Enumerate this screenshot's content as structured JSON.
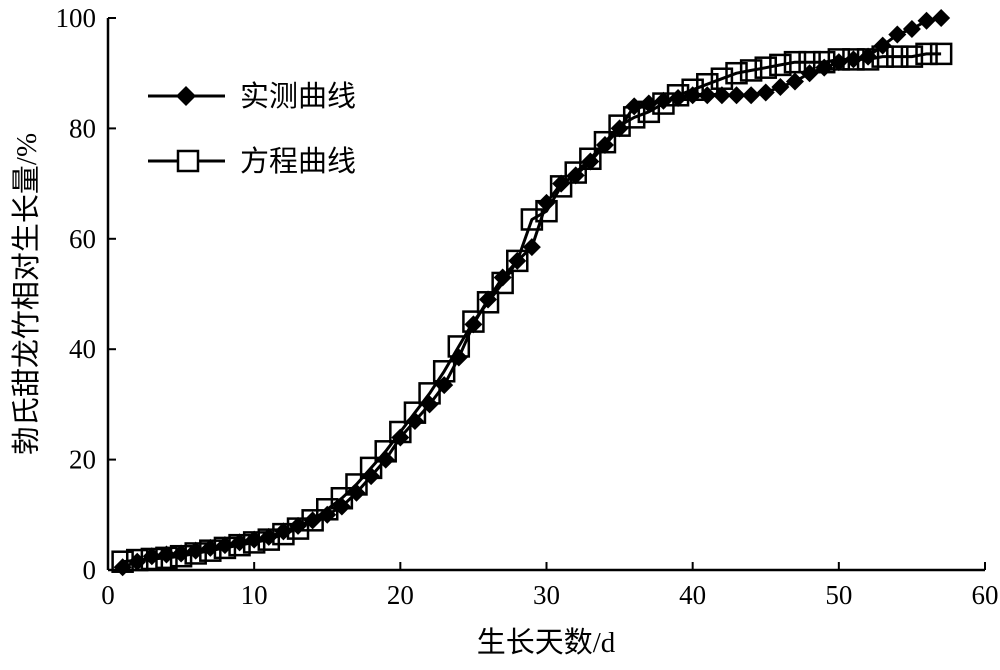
{
  "chart_data": {
    "type": "line",
    "title": "",
    "xlabel": "生长天数/d",
    "ylabel": "勃氏甜龙竹相对生长量/%",
    "xlim": [
      0,
      60
    ],
    "ylim": [
      0,
      100
    ],
    "xticks": [
      "0",
      "10",
      "20",
      "30",
      "40",
      "50",
      "60"
    ],
    "yticks": [
      "0",
      "20",
      "40",
      "60",
      "80",
      "100"
    ],
    "grid": false,
    "legend_position": "top-left",
    "series": [
      {
        "name": "实测曲线",
        "marker": "filled-diamond",
        "color": "#000000",
        "x": [
          1,
          2,
          3,
          4,
          5,
          6,
          7,
          8,
          9,
          10,
          11,
          12,
          13,
          14,
          15,
          16,
          17,
          18,
          19,
          20,
          21,
          22,
          23,
          24,
          25,
          26,
          27,
          28,
          29,
          30,
          31,
          32,
          33,
          34,
          35,
          36,
          37,
          38,
          39,
          40,
          41,
          42,
          43,
          44,
          45,
          46,
          47,
          48,
          49,
          50,
          51,
          52,
          53,
          54,
          55,
          56,
          57
        ],
        "y": [
          0.5,
          1.5,
          2.5,
          2.8,
          3.0,
          3.5,
          4.0,
          4.5,
          5.0,
          5.5,
          6.0,
          7.0,
          8.0,
          9.0,
          10.0,
          11.5,
          14.0,
          17.0,
          20.0,
          24.0,
          27.0,
          30.0,
          33.5,
          38.5,
          44.5,
          49.0,
          53.0,
          56.0,
          58.5,
          66.5,
          70.0,
          71.5,
          74.0,
          77.0,
          80.0,
          84.0,
          84.5,
          85.0,
          85.5,
          86.0,
          86.0,
          86.0,
          86.0,
          86.0,
          86.5,
          87.5,
          88.5,
          90.0,
          91.0,
          92.0,
          92.5,
          93.0,
          95.0,
          97.0,
          98.0,
          99.5,
          100.0
        ]
      },
      {
        "name": "方程曲线",
        "marker": "open-square",
        "color": "#000000",
        "x": [
          1,
          2,
          3,
          4,
          5,
          6,
          7,
          8,
          9,
          10,
          11,
          12,
          13,
          14,
          15,
          16,
          17,
          18,
          19,
          20,
          21,
          22,
          23,
          24,
          25,
          26,
          27,
          28,
          29,
          30,
          31,
          32,
          33,
          34,
          35,
          36,
          37,
          38,
          39,
          40,
          41,
          42,
          43,
          44,
          45,
          46,
          47,
          48,
          49,
          50,
          51,
          52,
          53,
          54,
          55,
          56,
          57
        ],
        "y": [
          1.5,
          1.8,
          2.0,
          2.2,
          2.5,
          3.0,
          3.5,
          4.0,
          4.5,
          5.0,
          5.5,
          6.5,
          7.5,
          9.0,
          11.0,
          13.0,
          15.5,
          18.5,
          21.5,
          25.0,
          28.5,
          32.0,
          36.0,
          40.5,
          45.0,
          48.5,
          52.0,
          56.0,
          63.5,
          65.0,
          69.5,
          72.0,
          74.5,
          77.5,
          80.5,
          82.0,
          83.0,
          84.5,
          86.0,
          87.0,
          88.0,
          89.0,
          90.0,
          90.5,
          91.0,
          91.5,
          92.0,
          92.0,
          92.0,
          92.5,
          92.5,
          92.5,
          93.0,
          93.0,
          93.0,
          93.5,
          93.5
        ]
      }
    ]
  }
}
